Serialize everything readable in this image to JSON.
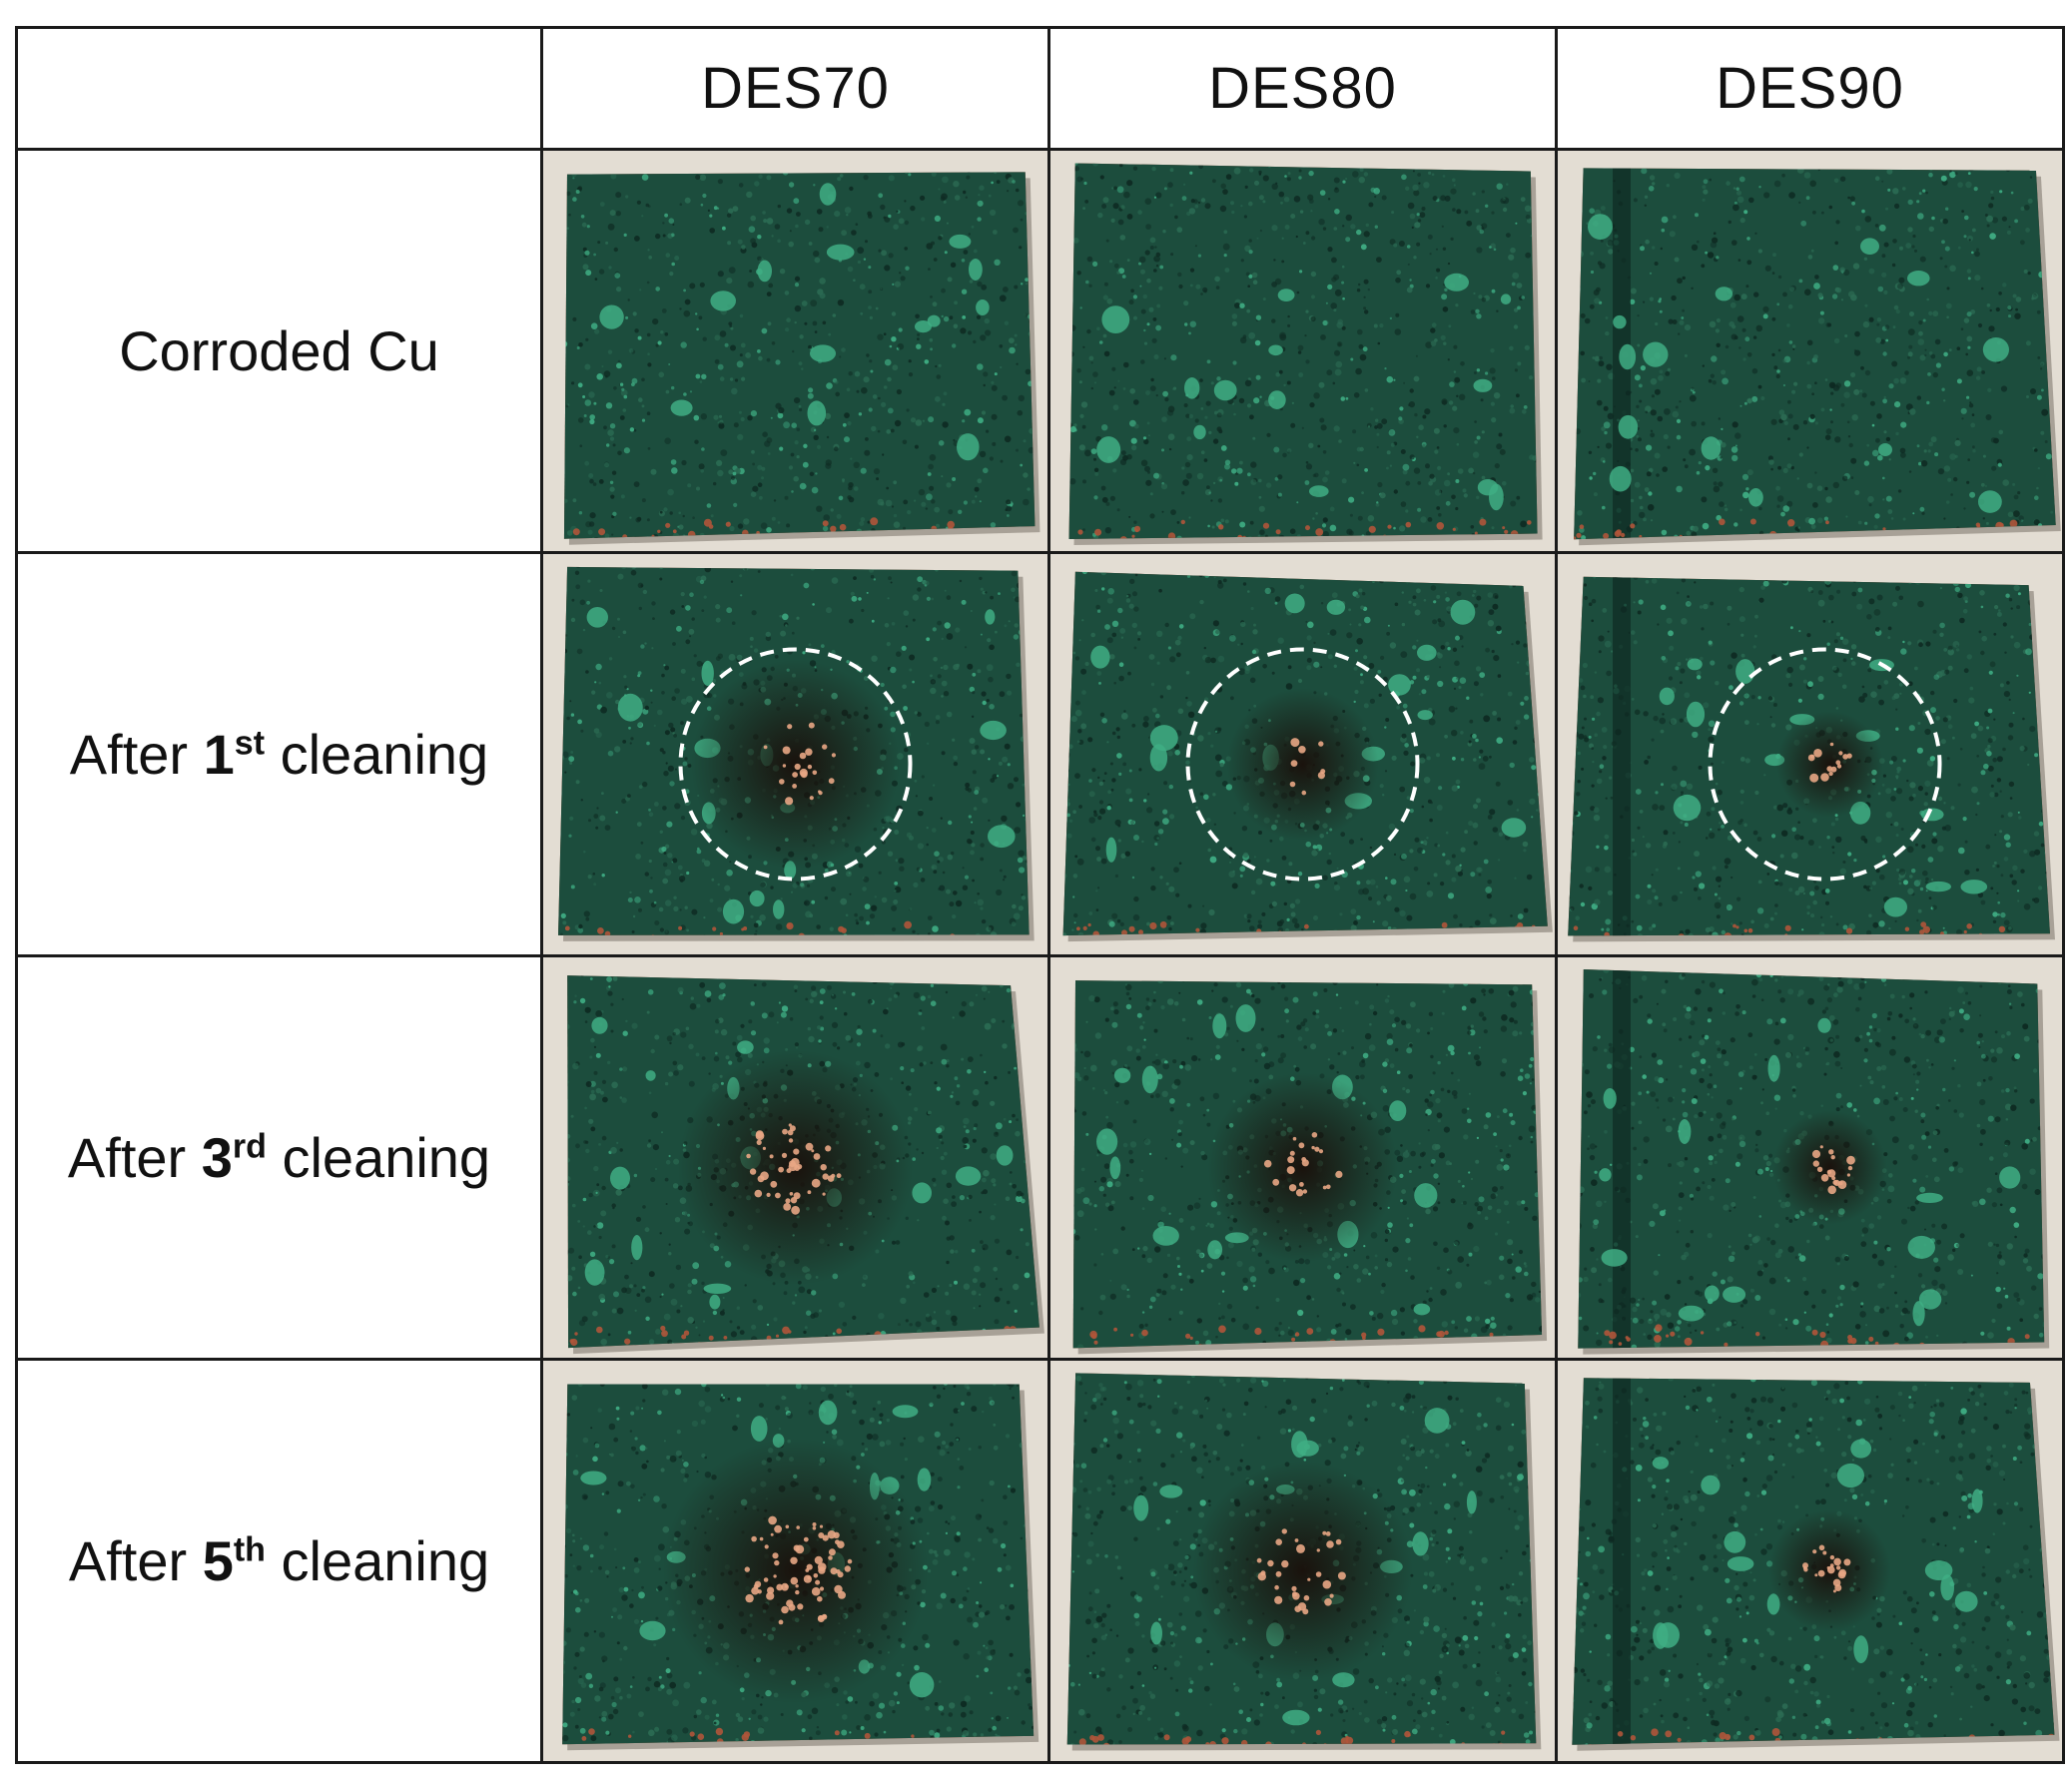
{
  "table": {
    "corner": "",
    "columns": [
      "DES70",
      "DES80",
      "DES90"
    ],
    "rows": [
      {
        "prefix": "Corroded Cu",
        "number": "",
        "ordinal": "",
        "suffix": ""
      },
      {
        "prefix": "After ",
        "number": "1",
        "ordinal": "st",
        "suffix": " cleaning"
      },
      {
        "prefix": "After ",
        "number": "3",
        "ordinal": "rd",
        "suffix": " cleaning"
      },
      {
        "prefix": "After ",
        "number": "5",
        "ordinal": "th",
        "suffix": " cleaning"
      }
    ]
  },
  "colors": {
    "background": "#e3ddd3",
    "patina": "#1c4d3d",
    "patina_light": "#3fae84",
    "patina_dark": "#0e2a22",
    "copper": "#e8a684",
    "rust": "#8a3a22",
    "highlight_circle": "#ffffff"
  }
}
